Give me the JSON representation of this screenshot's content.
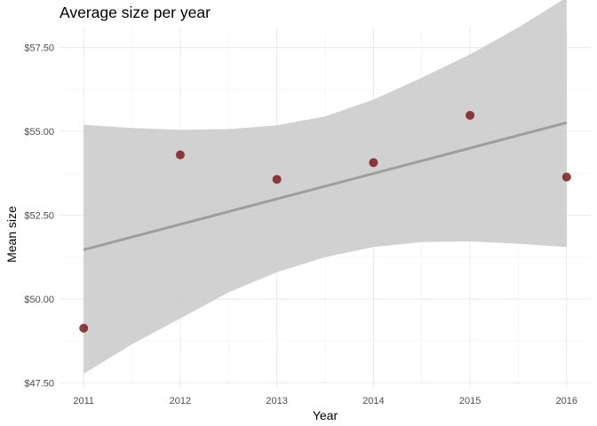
{
  "chart_data": {
    "type": "scatter",
    "title": "Average size per year",
    "xlabel": "Year",
    "ylabel": "Mean size",
    "x": [
      2011,
      2012,
      2013,
      2014,
      2015,
      2016
    ],
    "y": [
      49.13,
      54.3,
      53.57,
      54.07,
      55.48,
      53.64
    ],
    "xlim": [
      2010.75,
      2016.25
    ],
    "ylim": [
      47.35,
      58.1
    ],
    "x_ticks": [
      2011,
      2012,
      2013,
      2014,
      2015,
      2016
    ],
    "x_tick_labels": [
      "2011",
      "2012",
      "2013",
      "2014",
      "2015",
      "2016"
    ],
    "y_ticks": [
      47.5,
      50.0,
      52.5,
      55.0,
      57.5
    ],
    "y_tick_labels": [
      "$47.50",
      "$50.00",
      "$52.50",
      "$55.00",
      "$57.50"
    ],
    "trend_line": {
      "method": "linear",
      "x": [
        2011,
        2016
      ],
      "y": [
        51.47,
        55.26
      ]
    },
    "confidence_band": {
      "x": [
        2011,
        2011.5,
        2012,
        2012.5,
        2013,
        2013.5,
        2014,
        2014.5,
        2015,
        2015.5,
        2016
      ],
      "lower": [
        47.77,
        48.65,
        49.42,
        50.2,
        50.8,
        51.25,
        51.55,
        51.7,
        51.72,
        51.65,
        51.55
      ],
      "upper": [
        55.2,
        55.1,
        55.05,
        55.07,
        55.18,
        55.45,
        55.95,
        56.6,
        57.3,
        58.1,
        59.0
      ]
    },
    "grid": true,
    "legend": "none",
    "colors": {
      "points": "#7a1f1f",
      "trend_line": "#9e9e9e",
      "band": "#cccccc",
      "grid_major": "#ebebeb",
      "grid_minor": "#f5f5f5"
    }
  }
}
